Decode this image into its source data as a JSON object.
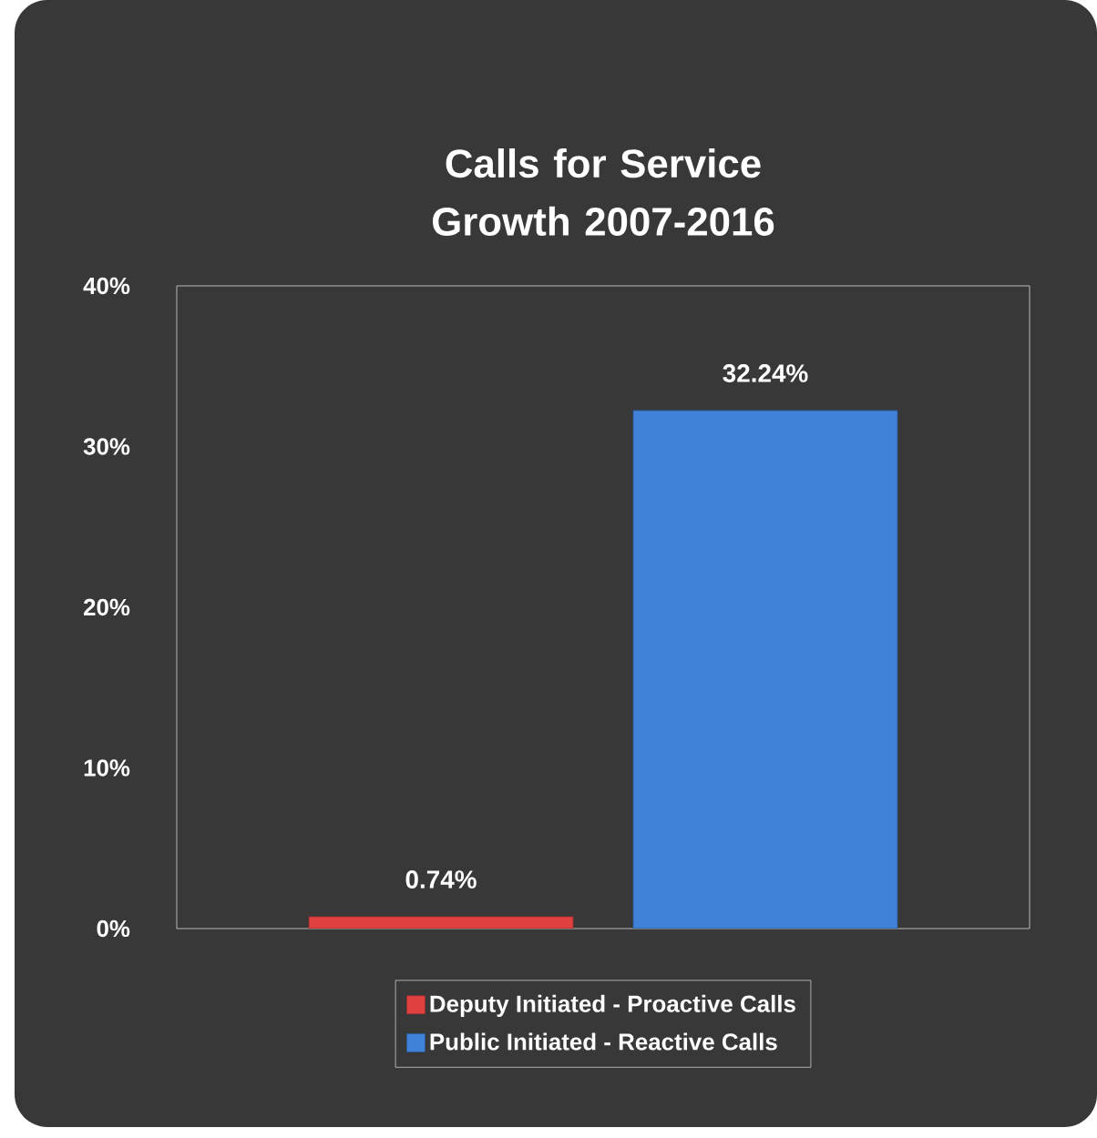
{
  "chart_data": {
    "type": "bar",
    "title": "Calls for Service Growth 2007-2016",
    "categories": [
      null
    ],
    "series": [
      {
        "name": "Deputy Initiated - Proactive Calls",
        "color": "#e04040",
        "values": [
          0.74
        ],
        "value_labels": [
          "0.74%"
        ]
      },
      {
        "name": "Public Initiated - Reactive Calls",
        "color": "#3f82d8",
        "values": [
          32.24
        ],
        "value_labels": [
          "32.24%"
        ]
      }
    ],
    "ylim": [
      0,
      40
    ],
    "yticks": [
      {
        "value": 0,
        "label": "0%"
      },
      {
        "value": 10,
        "label": "10%"
      },
      {
        "value": 20,
        "label": "20%"
      },
      {
        "value": 30,
        "label": "30%"
      },
      {
        "value": 40,
        "label": "40%"
      }
    ],
    "grid": false,
    "legend": "bottom"
  }
}
